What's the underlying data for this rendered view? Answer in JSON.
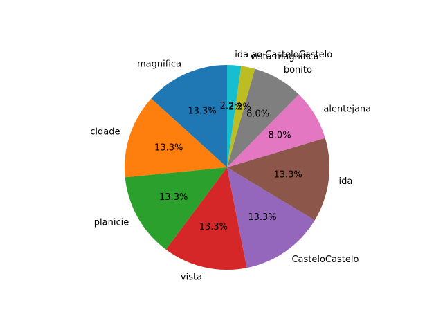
{
  "chart_data": {
    "type": "pie",
    "title": "",
    "start_angle_deg": 90,
    "direction": "counterclockwise",
    "slices": [
      {
        "label": "magnifica",
        "value": 13.3,
        "pct_label": "13.3%",
        "color": "#1f77b4"
      },
      {
        "label": "cidade",
        "value": 13.3,
        "pct_label": "13.3%",
        "color": "#ff7f0e"
      },
      {
        "label": "planicie",
        "value": 13.3,
        "pct_label": "13.3%",
        "color": "#2ca02c"
      },
      {
        "label": "vista",
        "value": 13.3,
        "pct_label": "13.3%",
        "color": "#d62728"
      },
      {
        "label": "CasteloCastelo",
        "value": 13.3,
        "pct_label": "13.3%",
        "color": "#9467bd"
      },
      {
        "label": "ida",
        "value": 13.3,
        "pct_label": "13.3%",
        "color": "#8c564b"
      },
      {
        "label": "alentejana",
        "value": 8.0,
        "pct_label": "8.0%",
        "color": "#e377c2"
      },
      {
        "label": "bonito",
        "value": 8.0,
        "pct_label": "8.0%",
        "color": "#7f7f7f"
      },
      {
        "label": "vista magnifica",
        "value": 2.2,
        "pct_label": "2.2%",
        "color": "#bcbd22"
      },
      {
        "label": "ida ao CasteloCastelo",
        "value": 2.2,
        "pct_label": "2.2%",
        "color": "#17becf"
      }
    ]
  }
}
